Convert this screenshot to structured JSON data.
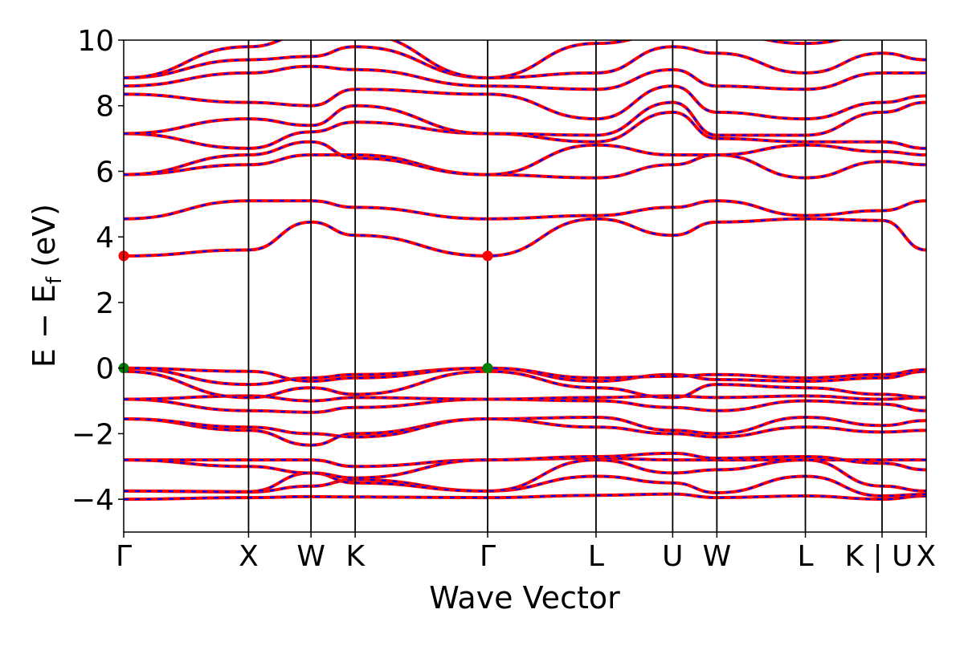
{
  "chart_data": {
    "type": "line",
    "title": "",
    "xlabel": "Wave Vector",
    "ylabel_main": "E − E",
    "ylabel_sub": "f",
    "ylabel_unit": " (eV)",
    "ylim": [
      -5,
      10
    ],
    "yticks": [
      -4,
      -2,
      0,
      2,
      4,
      6,
      8,
      10
    ],
    "ytick_labels": [
      "−4",
      "−2",
      "0",
      "2",
      "4",
      "6",
      "8",
      "10"
    ],
    "kpath": {
      "labels": [
        "Γ",
        "X",
        "W",
        "K",
        "Γ",
        "L",
        "U",
        "W",
        "L",
        "K | U",
        "X"
      ],
      "positions": [
        0.0,
        1.0,
        1.5,
        1.854,
        2.915,
        3.783,
        4.397,
        4.751,
        5.46,
        6.074,
        6.428
      ]
    },
    "xlim": [
      0.0,
      6.428
    ],
    "colors": {
      "band_base": "#ff0000",
      "band_dash": "#0000ff",
      "vbm_marker": "#008000",
      "cbm_marker": "#ff0000",
      "vline": "#000000"
    },
    "extrema": {
      "vbm": {
        "label": "VBM",
        "energy": 0.0,
        "k": [
          0.0,
          2.915
        ]
      },
      "cbm": {
        "label": "CBM",
        "energy": 3.42,
        "k": [
          0.0,
          2.915
        ]
      }
    },
    "series": [
      {
        "values": [
          -4.0,
          -3.95,
          -3.92,
          -3.93,
          -3.95,
          -3.88,
          -3.84,
          -3.95,
          -3.9,
          -4.0,
          -3.9
        ]
      },
      {
        "values": [
          -3.75,
          -3.78,
          -3.6,
          -3.4,
          -3.75,
          -3.3,
          -3.5,
          -3.8,
          -3.3,
          -3.9,
          -3.85
        ]
      },
      {
        "values": [
          -3.75,
          -3.77,
          -3.2,
          -3.5,
          -3.75,
          -2.8,
          -3.2,
          -3.1,
          -2.8,
          -3.6,
          -3.75
        ]
      },
      {
        "values": [
          -2.8,
          -2.8,
          -2.8,
          -3.0,
          -2.8,
          -2.75,
          -2.8,
          -2.8,
          -2.8,
          -2.8,
          -2.8
        ]
      },
      {
        "values": [
          -2.8,
          -3.0,
          -3.2,
          -3.35,
          -2.8,
          -2.7,
          -2.6,
          -2.75,
          -2.7,
          -2.9,
          -3.1
        ]
      },
      {
        "values": [
          -1.55,
          -1.9,
          -2.35,
          -2.0,
          -1.55,
          -1.8,
          -2.0,
          -2.1,
          -1.8,
          -1.95,
          -1.9
        ]
      },
      {
        "values": [
          -1.55,
          -1.8,
          -2.0,
          -2.1,
          -1.55,
          -1.5,
          -1.9,
          -2.0,
          -1.5,
          -1.75,
          -1.6
        ]
      },
      {
        "values": [
          -0.95,
          -1.3,
          -1.35,
          -1.2,
          -0.95,
          -1.0,
          -1.2,
          -1.3,
          -1.0,
          -1.1,
          -1.3
        ]
      },
      {
        "values": [
          -0.95,
          -0.85,
          -1.0,
          -0.9,
          -0.95,
          -0.9,
          -0.85,
          -0.9,
          -0.85,
          -0.95,
          -0.9
        ]
      },
      {
        "values": [
          -0.1,
          -0.9,
          -0.6,
          -0.8,
          -0.1,
          -0.6,
          -0.9,
          -0.5,
          -0.6,
          -0.8,
          -0.9
        ]
      },
      {
        "values": [
          0.0,
          -0.5,
          -0.3,
          -0.2,
          0.0,
          -0.4,
          -0.2,
          -0.35,
          -0.4,
          -0.3,
          -0.1
        ]
      },
      {
        "values": [
          0.0,
          -0.1,
          -0.4,
          -0.3,
          0.0,
          -0.3,
          -0.25,
          -0.2,
          -0.3,
          -0.2,
          -0.05
        ]
      },
      {
        "values": [
          3.42,
          3.6,
          4.45,
          4.05,
          3.42,
          4.55,
          4.05,
          4.45,
          4.55,
          4.5,
          3.6
        ]
      },
      {
        "values": [
          4.55,
          5.1,
          5.1,
          4.9,
          4.55,
          4.65,
          4.9,
          5.1,
          4.65,
          4.8,
          5.1
        ]
      },
      {
        "values": [
          5.9,
          6.2,
          6.5,
          6.5,
          5.9,
          5.8,
          6.2,
          6.5,
          5.8,
          6.3,
          6.2
        ]
      },
      {
        "values": [
          5.9,
          6.5,
          6.9,
          6.4,
          5.9,
          6.8,
          6.5,
          6.5,
          6.8,
          6.6,
          6.5
        ]
      },
      {
        "values": [
          7.15,
          6.7,
          7.2,
          7.5,
          7.15,
          6.9,
          7.8,
          7.0,
          6.9,
          6.9,
          6.7
        ]
      },
      {
        "values": [
          7.15,
          7.6,
          7.4,
          8.0,
          7.15,
          7.1,
          8.1,
          7.1,
          7.1,
          7.8,
          8.1
        ]
      },
      {
        "values": [
          8.35,
          8.1,
          8.0,
          8.5,
          8.35,
          7.6,
          8.6,
          7.8,
          7.6,
          8.1,
          8.3
        ]
      },
      {
        "values": [
          8.6,
          9.0,
          9.2,
          9.1,
          8.6,
          8.5,
          9.1,
          8.6,
          8.5,
          9.0,
          9.0
        ]
      },
      {
        "values": [
          8.85,
          9.4,
          9.5,
          9.8,
          8.85,
          9.0,
          9.8,
          9.6,
          9.0,
          9.6,
          9.4
        ]
      },
      {
        "values": [
          8.85,
          9.8,
          10.2,
          10.2,
          8.85,
          9.9,
          10.2,
          10.2,
          9.9,
          10.2,
          10.2
        ]
      }
    ]
  }
}
